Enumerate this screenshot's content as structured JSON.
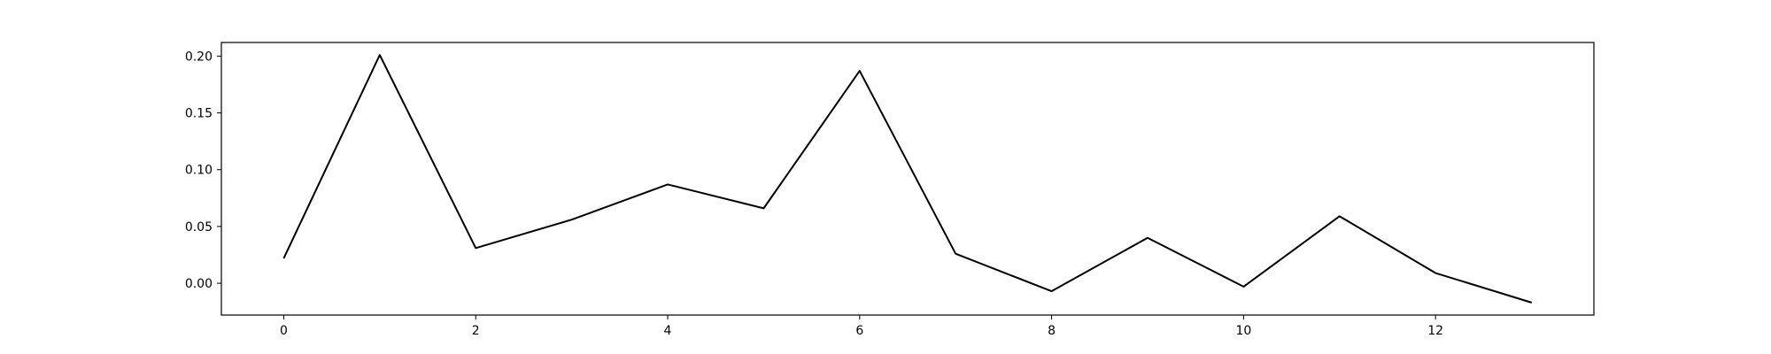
{
  "chart_data": {
    "type": "line",
    "title": "",
    "xlabel": "",
    "ylabel": "",
    "x": [
      0,
      1,
      2,
      3,
      4,
      5,
      6,
      7,
      8,
      9,
      10,
      11,
      12,
      13
    ],
    "series": [
      {
        "values": [
          0.022,
          0.201,
          0.031,
          0.056,
          0.087,
          0.066,
          0.187,
          0.026,
          -0.007,
          0.04,
          -0.003,
          0.059,
          0.009,
          -0.017
        ]
      }
    ],
    "xlim": [
      -0.65,
      13.65
    ],
    "ylim": [
      -0.028,
      0.212
    ],
    "xticks": [
      0,
      2,
      4,
      6,
      8,
      10,
      12
    ],
    "xtick_labels": [
      "0",
      "2",
      "4",
      "6",
      "8",
      "10",
      "12"
    ],
    "yticks": [
      0.0,
      0.05,
      0.1,
      0.15,
      0.2
    ],
    "ytick_labels": [
      "0.00",
      "0.05",
      "0.10",
      "0.15",
      "0.20"
    ],
    "grid": false,
    "legend": "none",
    "line_color": "#000000"
  }
}
